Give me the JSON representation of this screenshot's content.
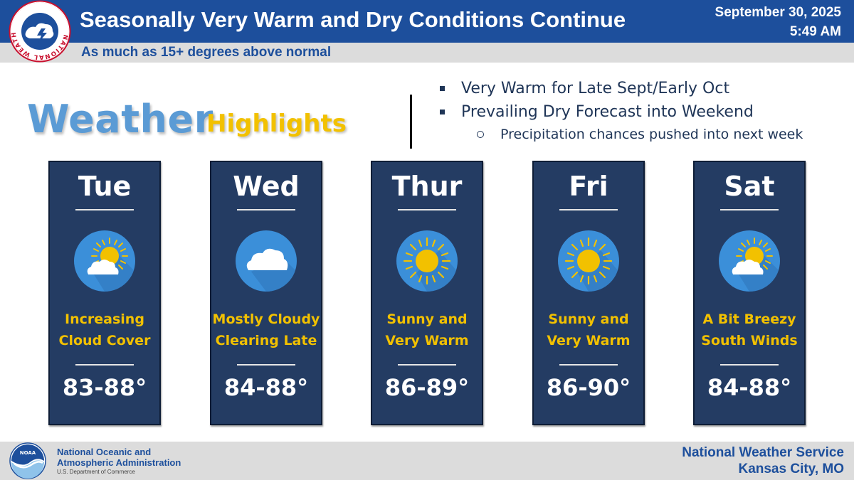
{
  "header": {
    "title": "Seasonally Very Warm and Dry Conditions Continue",
    "date": "September 30, 2025",
    "time": "5:49 AM",
    "subtitle": "As much as 15+ degrees above normal"
  },
  "logos": {
    "nws_ring_text": "NATIONAL WEATHER SERVICE",
    "noaa_badge_text": "NOAA"
  },
  "highlights": {
    "word1": "Weather",
    "word2": "Highlights",
    "bullets": [
      "Very Warm for Late Sept/Early Oct",
      "Prevailing Dry Forecast into Weekend"
    ],
    "sub_bullet": "Precipitation chances pushed into next week"
  },
  "days": [
    {
      "name": "Tue",
      "icon": "partly-cloudy-icon",
      "desc1": "Increasing",
      "desc2": "Cloud Cover",
      "temp": "83-88°"
    },
    {
      "name": "Wed",
      "icon": "cloud-icon",
      "desc1": "Mostly Cloudy",
      "desc2": "Clearing Late",
      "temp": "84-88°"
    },
    {
      "name": "Thur",
      "icon": "sun-icon",
      "desc1": "Sunny and",
      "desc2": "Very Warm",
      "temp": "86-89°"
    },
    {
      "name": "Fri",
      "icon": "sun-icon",
      "desc1": "Sunny and",
      "desc2": "Very Warm",
      "temp": "86-90°"
    },
    {
      "name": "Sat",
      "icon": "partly-cloudy-icon",
      "desc1": "A Bit Breezy",
      "desc2": "South Winds",
      "temp": "84-88°"
    }
  ],
  "footer": {
    "noaa_line1": "National Oceanic and",
    "noaa_line2": "Atmospheric Administration",
    "noaa_dept": "U.S. Department of Commerce",
    "office_line1": "National Weather Service",
    "office_line2": "Kansas City, MO"
  },
  "colors": {
    "header_blue": "#1d4f9c",
    "card_navy": "#243c63",
    "accent_yellow": "#f2c100",
    "weather_blue": "#5b9bd5",
    "icon_circle": "#3b8fd9"
  }
}
